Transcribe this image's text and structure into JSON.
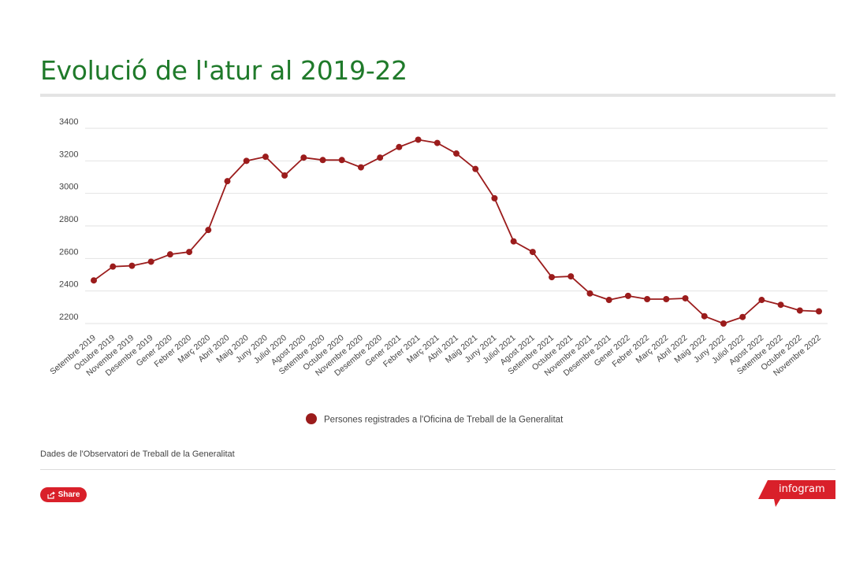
{
  "title": "Evolució de l'atur al 2019-22",
  "source_note": "Dades de l'Observatori de Treball de la Generalitat",
  "share": {
    "label": "Share",
    "icon": "share-icon"
  },
  "brand": {
    "label": "infogram",
    "color": "#d9202a"
  },
  "colors": {
    "title": "#1f7a2a",
    "series": "#9b1c1c",
    "grid": "#e2e2e2"
  },
  "chart_data": {
    "type": "line",
    "title": "Evolució de l'atur al 2019-22",
    "xlabel": "",
    "ylabel": "",
    "ylim": [
      2100,
      3400
    ],
    "yticks": [
      2200,
      2400,
      2600,
      2800,
      3000,
      3200,
      3400
    ],
    "grid": true,
    "legend_position": "bottom",
    "categories": [
      "Setembre 2019",
      "Octubre 2019",
      "Novembre 2019",
      "Desembre 2019",
      "Gener 2020",
      "Febrer 2020",
      "Març 2020",
      "Abril 2020",
      "Maig 2020",
      "Juny 2020",
      "Juliol 2020",
      "Agost 2020",
      "Setembre 2020",
      "Octubre 2020",
      "Novembre 2020",
      "Desembre 2020",
      "Gener 2021",
      "Febrer 2021",
      "Març 2021",
      "Abril 2021",
      "Maig 2021",
      "Juny 2021",
      "Juliol 2021",
      "Agost 2021",
      "Setembre 2021",
      "Octubre 2021",
      "Novembre 2021",
      "Desembre 2021",
      "Gener 2022",
      "Febrer 2022",
      "Març 2022",
      "Abril 2022",
      "Maig 2022",
      "Juny 2022",
      "Juliol 2022",
      "Agost 2022",
      "Setembre 2022",
      "Octubre 2022",
      "Novembre 2022"
    ],
    "series": [
      {
        "name": "Persones registrades a l'Oficina de Treball de la Generalitat",
        "color": "#9b1c1c",
        "values": [
          2465,
          2550,
          2555,
          2580,
          2625,
          2640,
          2775,
          3075,
          3200,
          3225,
          3110,
          3220,
          3205,
          3205,
          3160,
          3220,
          3285,
          3330,
          3310,
          3245,
          3150,
          2970,
          2705,
          2640,
          2485,
          2490,
          2385,
          2345,
          2370,
          2350,
          2350,
          2355,
          2245,
          2200,
          2240,
          2345,
          2315,
          2280,
          2275
        ]
      }
    ]
  }
}
